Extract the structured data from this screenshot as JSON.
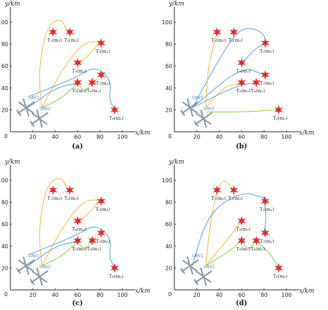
{
  "axes": {
    "xlabel": "x/km",
    "ylabel": "y/km",
    "origin": "0",
    "xticks": [
      "20",
      "40",
      "60",
      "80",
      "100"
    ],
    "yticks": [
      "20",
      "40",
      "60",
      "80",
      "100"
    ]
  },
  "colors": {
    "target": "#e8262a",
    "yellow": "#f2b632",
    "blue": "#4aa3df",
    "green": "#7ed02c",
    "uav": "#8e9aa8"
  },
  "uav_labels": [
    "UAV1",
    "UAV2"
  ],
  "panels": [
    {
      "caption": "(a)",
      "targets": [
        {
          "x": 38,
          "y": 91,
          "label": "T₁(m₂)"
        },
        {
          "x": 53,
          "y": 91,
          "label": "T₂(m₂)"
        },
        {
          "x": 81,
          "y": 81,
          "label": "T₃(m₁)"
        },
        {
          "x": 60,
          "y": 63,
          "label": "T₄(m₂)"
        },
        {
          "x": 60,
          "y": 45,
          "label": "T₅(m₁)"
        },
        {
          "x": 73,
          "y": 45,
          "label": "T₆(m₁)"
        },
        {
          "x": 81,
          "y": 52,
          "label": "T₇(m₂)"
        },
        {
          "x": 93,
          "y": 20,
          "label": "T₈(m₂)"
        }
      ]
    },
    {
      "caption": "(b)",
      "targets": [
        {
          "x": 38,
          "y": 91,
          "label": "T₁(m₂)"
        },
        {
          "x": 53,
          "y": 91,
          "label": "T₂(m₂)"
        },
        {
          "x": 81,
          "y": 81,
          "label": "T₃(m₁)"
        },
        {
          "x": 60,
          "y": 63,
          "label": "T₄(m₂)"
        },
        {
          "x": 60,
          "y": 45,
          "label": "T₅(m₁)"
        },
        {
          "x": 73,
          "y": 45,
          "label": "T₆(m₁)"
        },
        {
          "x": 81,
          "y": 52,
          "label": "T₇(m₂)"
        },
        {
          "x": 93,
          "y": 20,
          "label": "T₈(m₂)"
        }
      ]
    },
    {
      "caption": "(c)",
      "targets": [
        {
          "x": 38,
          "y": 91,
          "label": "T₁(m₂)"
        },
        {
          "x": 53,
          "y": 91,
          "label": "T₂(m₂)"
        },
        {
          "x": 81,
          "y": 81,
          "label": "T₃(m₁)"
        },
        {
          "x": 60,
          "y": 63,
          "label": "T₄(m₂)"
        },
        {
          "x": 60,
          "y": 45,
          "label": "T₅(m₁)"
        },
        {
          "x": 73,
          "y": 45,
          "label": "T₆(m₁)"
        },
        {
          "x": 81,
          "y": 52,
          "label": "T₇(m₂)"
        },
        {
          "x": 93,
          "y": 20,
          "label": "T₈(m₂)"
        }
      ]
    },
    {
      "caption": "(d)",
      "targets": [
        {
          "x": 38,
          "y": 91,
          "label": "T₁(m₂)"
        },
        {
          "x": 53,
          "y": 91,
          "label": "T₂(m₂)"
        },
        {
          "x": 81,
          "y": 81,
          "label": "T₃(m₁)"
        },
        {
          "x": 60,
          "y": 63,
          "label": "T₄(m₂)"
        },
        {
          "x": 60,
          "y": 45,
          "label": "T₅(m₁)"
        },
        {
          "x": 73,
          "y": 45,
          "label": "T₆(m₁)"
        },
        {
          "x": 81,
          "y": 52,
          "label": "T₇(m₂)"
        },
        {
          "x": 93,
          "y": 20,
          "label": "T₈(m₂)"
        }
      ]
    }
  ]
}
